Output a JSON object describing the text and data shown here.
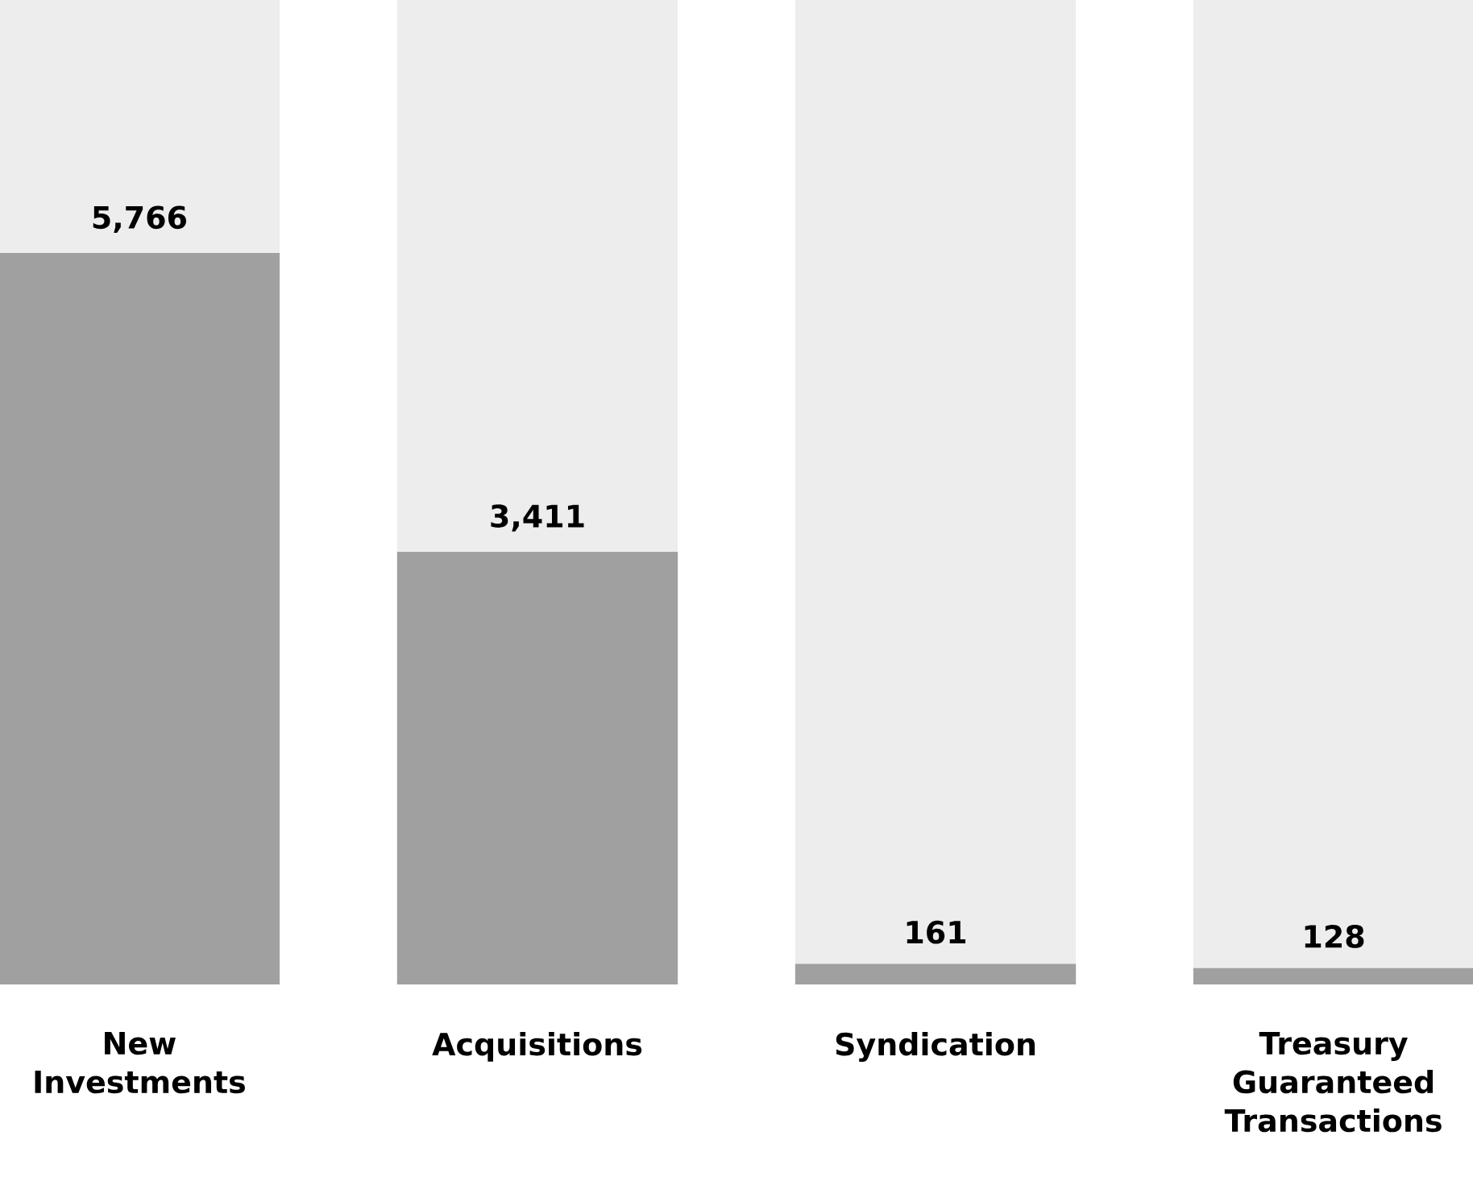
{
  "chart_data": {
    "type": "bar",
    "tick_labels": "x",
    "categories": [
      "New Investments",
      "Acquisitions",
      "Syndication",
      "Treasury Guaranteed Transactions"
    ],
    "series": [
      {
        "color": "#a0a0a0",
        "values": [
          5766,
          3411,
          161,
          128
        ],
        "value_labels": [
          "5,766",
          "3,411",
          "161",
          "128"
        ]
      }
    ]
  }
}
